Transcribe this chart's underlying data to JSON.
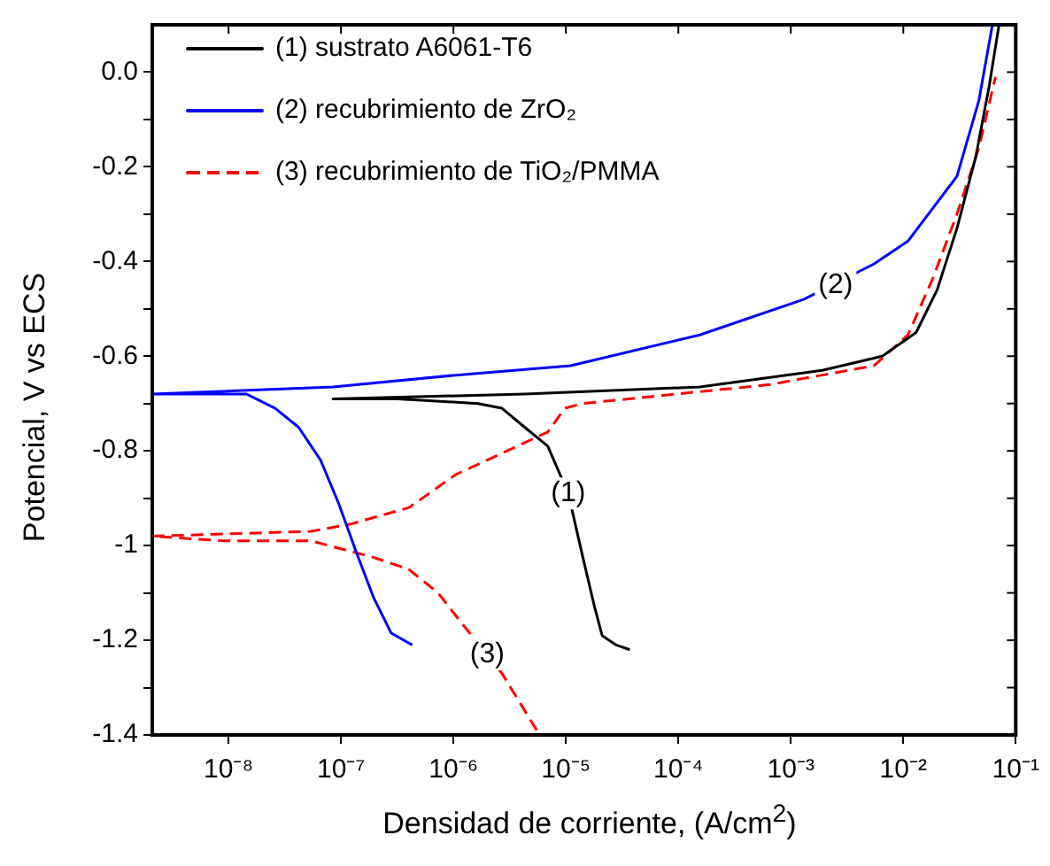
{
  "chart_data": {
    "type": "line",
    "xlabel": "Densidad de corriente, (A/cm$^{2}$)",
    "ylabel": "Potencial, V vs ECS",
    "log": "x",
    "xlim": [
      2.1e-09,
      0.1
    ],
    "ylim": [
      -1.4,
      0.1
    ],
    "xticks": [
      {
        "value": 1e-08,
        "label": "10⁻⁸"
      },
      {
        "value": 1e-07,
        "label": "10⁻⁷"
      },
      {
        "value": 1e-06,
        "label": "10⁻⁶"
      },
      {
        "value": 1e-05,
        "label": "10⁻⁵"
      },
      {
        "value": 0.0001,
        "label": "10⁻⁴"
      },
      {
        "value": 0.001,
        "label": "10⁻³"
      },
      {
        "value": 0.01,
        "label": "10⁻²"
      },
      {
        "value": 0.1,
        "label": "10⁻¹"
      }
    ],
    "yticks": [
      -1.4,
      {
        "value": -1.3,
        "label": null
      },
      -1.2,
      {
        "value": -1.1,
        "label": null
      },
      -1.0,
      {
        "value": -0.9,
        "label": null
      },
      -0.8,
      {
        "value": -0.7,
        "label": null
      },
      -0.6,
      {
        "value": -0.5,
        "label": null
      },
      -0.4,
      {
        "value": -0.3,
        "label": null
      },
      -0.2,
      {
        "value": -0.1,
        "label": null
      },
      {
        "value": 0,
        "label": "0.0"
      }
    ],
    "grid": false,
    "legend": "top left",
    "marker": "none",
    "series": [
      {
        "name": "(1) sustrato A6061-T6",
        "color": "#000000",
        "line_style": "solid",
        "x": [
          3.7e-05,
          2.8e-05,
          2.1e-05,
          1.8e-05,
          1.4e-05,
          1.05e-05,
          6.9e-06,
          4.3e-06,
          2.7e-06,
          1.65e-06,
          3.2e-07,
          8.5e-08,
          4.3e-06,
          0.000155,
          0.0019,
          0.0065,
          0.013,
          0.02,
          0.03,
          0.044,
          0.058,
          0.071
        ],
        "values": [
          -1.22,
          -1.21,
          -1.19,
          -1.13,
          -1.02,
          -0.89,
          -0.79,
          -0.75,
          -0.71,
          -0.7,
          -0.69,
          -0.69,
          -0.68,
          -0.665,
          -0.63,
          -0.6,
          -0.55,
          -0.46,
          -0.33,
          -0.18,
          -0.03,
          0.1
        ]
      },
      {
        "name": "(2) recubrimiento de ZrO₂",
        "color": "#0000ff",
        "line_style": "solid",
        "x": [
          4.3e-07,
          2.8e-07,
          1.95e-07,
          1.35e-07,
          9.5e-08,
          6.6e-08,
          4.2e-08,
          2.6e-08,
          1.45e-08,
          2.1e-09,
          8.5e-08,
          1.05e-06,
          1.1e-05,
          0.000155,
          0.0013,
          0.0055,
          0.011,
          0.03,
          0.047,
          0.062
        ],
        "values": [
          -1.21,
          -1.185,
          -1.11,
          -1.01,
          -0.91,
          -0.82,
          -0.75,
          -0.71,
          -0.68,
          -0.68,
          -0.665,
          -0.64,
          -0.62,
          -0.555,
          -0.48,
          -0.405,
          -0.357,
          -0.22,
          -0.06,
          0.1
        ]
      },
      {
        "name": "(3) recubrimiento de TiO₂/PMMA",
        "color": "#ff0000",
        "line_style": "dashed",
        "x": [
          5.5e-06,
          2.7e-06,
          1.15e-06,
          7.3e-07,
          4e-07,
          1.95e-07,
          5.4e-08,
          9e-09,
          2.1e-09,
          5.4e-08,
          1.2e-07,
          4e-07,
          1.05e-06,
          2.7e-06,
          6.9e-06,
          9.8e-06,
          1.4e-05,
          0.00065,
          0.0055,
          0.011,
          0.018,
          0.03,
          0.047,
          0.066
        ],
        "values": [
          -1.39,
          -1.27,
          -1.16,
          -1.1,
          -1.05,
          -1.025,
          -0.99,
          -0.99,
          -0.98,
          -0.97,
          -0.955,
          -0.92,
          -0.85,
          -0.805,
          -0.76,
          -0.71,
          -0.7,
          -0.66,
          -0.62,
          -0.555,
          -0.44,
          -0.3,
          -0.16,
          -0.01
        ]
      }
    ],
    "annotations": [
      {
        "text": "(1)",
        "x": 1.05e-05,
        "y": -0.89
      },
      {
        "text": "(2)",
        "x": 0.0025,
        "y": -0.45
      },
      {
        "text": "(3)",
        "x": 2e-06,
        "y": -1.23
      }
    ]
  }
}
